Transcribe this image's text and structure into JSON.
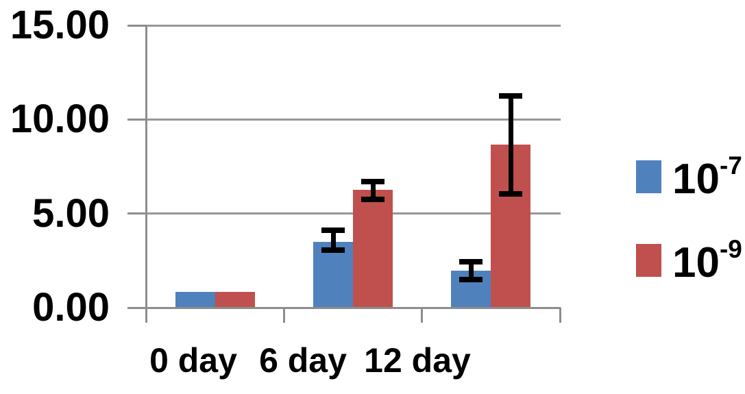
{
  "figure": {
    "background": "#ffffff",
    "text_color": "#000000",
    "grid_color": "#979797",
    "axis_color": "#8d8d8d"
  },
  "chart_data": {
    "type": "bar",
    "title": "",
    "xlabel": "",
    "ylabel": "",
    "categories": [
      "0 day",
      "6 day",
      "12 day"
    ],
    "series": [
      {
        "name": "10^-7",
        "legend_base": "10",
        "legend_exp": "-7",
        "color": "#4F81BD",
        "values": [
          0.85,
          3.5,
          1.95
        ],
        "error_low": [
          null,
          3.05,
          1.5
        ],
        "error_high": [
          null,
          4.1,
          2.45
        ]
      },
      {
        "name": "10^-9",
        "legend_base": "10",
        "legend_exp": "-9",
        "color": "#C0504D",
        "values": [
          0.85,
          6.25,
          8.65
        ],
        "error_low": [
          null,
          5.75,
          6.05
        ],
        "error_high": [
          null,
          6.7,
          11.25
        ]
      }
    ],
    "ylim": [
      0,
      15
    ],
    "yticks": [
      0,
      5,
      10,
      15
    ],
    "ytick_labels": [
      "0.00",
      "5.00",
      "10.00",
      "15.00"
    ],
    "grid": true,
    "legend_position": "right",
    "error_bar_color": "#000000"
  }
}
